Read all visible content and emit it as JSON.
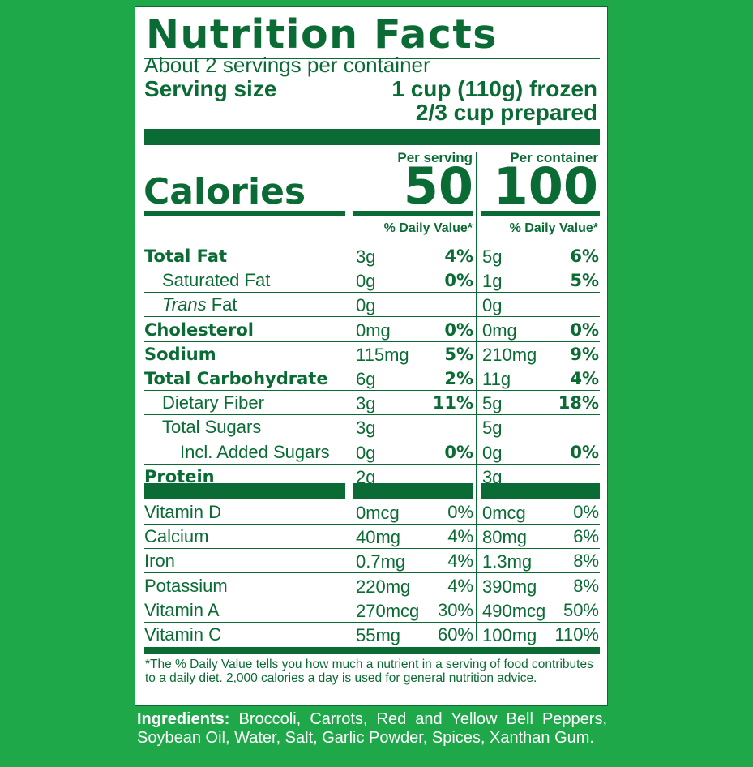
{
  "label": {
    "title": "Nutrition Facts",
    "servings": "About 2 servings per container",
    "serving_size_label": "Serving size",
    "serving_size_line1": "1 cup (110g) frozen",
    "serving_size_line2": "2/3 cup prepared",
    "calories_label": "Calories",
    "per_serving_label": "Per serving",
    "per_container_label": "Per container",
    "calories_serving": "50",
    "calories_container": "100",
    "dv_header": "% Daily Value*"
  },
  "nutrients": [
    {
      "name": "Total Fat",
      "bold": true,
      "indent": 0,
      "s_amt": "3g",
      "s_pct": "4%",
      "c_amt": "5g",
      "c_pct": "6%"
    },
    {
      "name": "Saturated Fat",
      "bold": false,
      "indent": 1,
      "s_amt": "0g",
      "s_pct": "0%",
      "c_amt": "1g",
      "c_pct": "5%"
    },
    {
      "name_italic": "Trans",
      "name": " Fat",
      "bold": false,
      "indent": 1,
      "s_amt": "0g",
      "s_pct": "",
      "c_amt": "0g",
      "c_pct": ""
    },
    {
      "name": "Cholesterol",
      "bold": true,
      "indent": 0,
      "s_amt": "0mg",
      "s_pct": "0%",
      "c_amt": "0mg",
      "c_pct": "0%"
    },
    {
      "name": "Sodium",
      "bold": true,
      "indent": 0,
      "s_amt": "115mg",
      "s_pct": "5%",
      "c_amt": "210mg",
      "c_pct": "9%"
    },
    {
      "name": "Total Carbohydrate",
      "bold": true,
      "indent": 0,
      "s_amt": "6g",
      "s_pct": "2%",
      "c_amt": "11g",
      "c_pct": "4%"
    },
    {
      "name": "Dietary Fiber",
      "bold": false,
      "indent": 1,
      "s_amt": "3g",
      "s_pct": "11%",
      "c_amt": "5g",
      "c_pct": "18%"
    },
    {
      "name": "Total Sugars",
      "bold": false,
      "indent": 1,
      "s_amt": "3g",
      "s_pct": "",
      "c_amt": "5g",
      "c_pct": ""
    },
    {
      "name": "Incl. Added Sugars",
      "bold": false,
      "indent": 2,
      "s_amt": "0g",
      "s_pct": "0%",
      "c_amt": "0g",
      "c_pct": "0%"
    },
    {
      "name": "Protein",
      "bold": true,
      "indent": 0,
      "s_amt": "2g",
      "s_pct": "",
      "c_amt": "3g",
      "c_pct": ""
    }
  ],
  "vitamins": [
    {
      "name": "Vitamin D",
      "s_amt": "0mcg",
      "s_pct": "0%",
      "c_amt": "0mcg",
      "c_pct": "0%"
    },
    {
      "name": "Calcium",
      "s_amt": "40mg",
      "s_pct": "4%",
      "c_amt": "80mg",
      "c_pct": "6%"
    },
    {
      "name": "Iron",
      "s_amt": "0.7mg",
      "s_pct": "4%",
      "c_amt": "1.3mg",
      "c_pct": "8%"
    },
    {
      "name": "Potassium",
      "s_amt": "220mg",
      "s_pct": "4%",
      "c_amt": "390mg",
      "c_pct": "8%"
    },
    {
      "name": "Vitamin A",
      "s_amt": "270mcg",
      "s_pct": "30%",
      "c_amt": "490mcg",
      "c_pct": "50%"
    },
    {
      "name": "Vitamin C",
      "s_amt": "55mg",
      "s_pct": "60%",
      "c_amt": "100mg",
      "c_pct": "110%"
    }
  ],
  "footnote": "*The % Daily Value tells you how much a nutrient in a serving of food contributes to a daily diet. 2,000 calories a day is used for general nutrition advice.",
  "ingredients": {
    "label": "Ingredients:",
    "text": "Broccoli, Carrots, Red and Yellow Bell Peppers, Soybean Oil, Water, Salt, Garlic Powder, Spices, Xanthan Gum."
  },
  "colors": {
    "background": "#1fa84a",
    "ink": "#0a6b34",
    "panel": "#ffffff"
  }
}
